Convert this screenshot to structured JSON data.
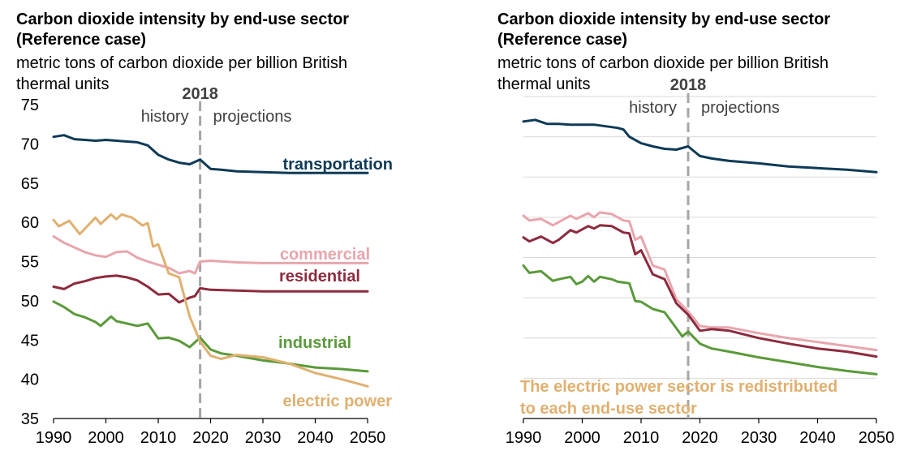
{
  "colors": {
    "transportation": "#0e3a57",
    "commercial": "#e8a5ad",
    "residential": "#8e2a3e",
    "industrial": "#5a9a3a",
    "electric_power": "#e0b070",
    "grid": "#d9d9d9",
    "divider": "#a6a6a6",
    "text": "#000000"
  },
  "chart_data": [
    {
      "type": "line",
      "title": "Carbon dioxide intensity by end-use sector",
      "subtitle": "(Reference case)",
      "ylabel": "metric tons of carbon dioxide per billion British thermal units",
      "ylim": [
        35,
        75
      ],
      "xlim": [
        1990,
        2050
      ],
      "xticks": [
        "1990",
        "2000",
        "2010",
        "2020",
        "2030",
        "2040",
        "2050"
      ],
      "yticks": [
        "75",
        "70",
        "65",
        "60",
        "55",
        "50",
        "45",
        "40",
        "35"
      ],
      "divider": {
        "x": 2018,
        "label": "2018",
        "left_label": "history",
        "right_label": "projections"
      },
      "grid": false,
      "series": [
        {
          "key": "transportation",
          "name": "transportation",
          "x": [
            1990,
            1992,
            1994,
            1996,
            1998,
            2000,
            2002,
            2004,
            2006,
            2008,
            2010,
            2012,
            2014,
            2016,
            2018,
            2020,
            2022,
            2025,
            2030,
            2035,
            2040,
            2045,
            2050
          ],
          "values": [
            70.9,
            71.1,
            70.6,
            70.5,
            70.4,
            70.5,
            70.4,
            70.3,
            70.2,
            69.8,
            68.6,
            68.0,
            67.6,
            67.4,
            68.0,
            66.8,
            66.7,
            66.5,
            66.4,
            66.3,
            66.3,
            66.3,
            66.3
          ]
        },
        {
          "key": "commercial",
          "name": "commercial",
          "x": [
            1990,
            1992,
            1994,
            1996,
            1998,
            2000,
            2002,
            2004,
            2006,
            2008,
            2010,
            2012,
            2014,
            2016,
            2017,
            2018,
            2020,
            2025,
            2030,
            2035,
            2040,
            2045,
            2050
          ],
          "values": [
            58.2,
            57.4,
            56.8,
            56.2,
            55.8,
            55.6,
            56.2,
            56.3,
            55.5,
            55.0,
            54.6,
            54.2,
            53.5,
            53.8,
            53.5,
            55.0,
            55.1,
            54.9,
            54.8,
            54.8,
            54.8,
            54.8,
            54.8
          ]
        },
        {
          "key": "residential",
          "name": "residential",
          "x": [
            1990,
            1992,
            1994,
            1996,
            1998,
            2000,
            2002,
            2004,
            2006,
            2008,
            2010,
            2012,
            2014,
            2015,
            2016,
            2017,
            2018,
            2020,
            2025,
            2030,
            2035,
            2040,
            2045,
            2050
          ],
          "values": [
            51.8,
            51.5,
            52.2,
            52.5,
            52.9,
            53.1,
            53.2,
            53.0,
            52.6,
            51.8,
            50.8,
            50.9,
            49.8,
            50.1,
            50.4,
            50.6,
            51.6,
            51.4,
            51.3,
            51.2,
            51.2,
            51.2,
            51.2,
            51.2
          ]
        },
        {
          "key": "industrial",
          "name": "industrial",
          "x": [
            1990,
            1992,
            1994,
            1996,
            1998,
            1999,
            2001,
            2002,
            2004,
            2006,
            2008,
            2010,
            2012,
            2014,
            2016,
            2018,
            2020,
            2022,
            2025,
            2030,
            2035,
            2040,
            2045,
            2050
          ],
          "values": [
            49.9,
            49.2,
            48.3,
            47.9,
            47.3,
            46.8,
            48.0,
            47.4,
            47.1,
            46.8,
            47.1,
            45.2,
            45.3,
            44.9,
            44.1,
            45.3,
            43.8,
            43.3,
            43.0,
            42.4,
            42.0,
            41.5,
            41.3,
            41.0
          ]
        },
        {
          "key": "electric_power",
          "name": "electric power",
          "x": [
            1990,
            1991,
            1993,
            1995,
            1996,
            1998,
            1999,
            2001,
            2002,
            2003,
            2005,
            2007,
            2008,
            2009,
            2010,
            2012,
            2014,
            2016,
            2018,
            2020,
            2022,
            2025,
            2030,
            2035,
            2040,
            2045,
            2050
          ],
          "values": [
            60.3,
            59.5,
            60.2,
            58.5,
            59.2,
            60.6,
            59.8,
            61.0,
            60.4,
            61.0,
            60.6,
            59.6,
            59.9,
            56.9,
            57.2,
            53.5,
            53.0,
            48.0,
            44.8,
            43.0,
            42.6,
            43.1,
            42.8,
            42.0,
            40.8,
            40.0,
            39.1
          ]
        }
      ],
      "labels": {
        "transportation": "transportation",
        "commercial": "commercial",
        "residential": "residential",
        "industrial": "industrial",
        "electric_power": "electric power"
      }
    },
    {
      "type": "line",
      "title": "Carbon dioxide intensity by end-use sector",
      "subtitle": "(Reference case)",
      "ylabel": "metric tons of carbon dioxide per billion British thermal units",
      "ylim": [
        35,
        75
      ],
      "xlim": [
        1990,
        2050
      ],
      "xticks": [
        "1990",
        "2000",
        "2010",
        "2020",
        "2030",
        "2040",
        "2050"
      ],
      "yticks": [],
      "divider": {
        "x": 2018,
        "label": "2018",
        "left_label": "history",
        "right_label": "projections"
      },
      "grid": true,
      "series": [
        {
          "key": "transportation",
          "x": [
            1990,
            1992,
            1994,
            1996,
            1998,
            2000,
            2002,
            2004,
            2006,
            2007,
            2008,
            2010,
            2012,
            2014,
            2016,
            2018,
            2020,
            2022,
            2025,
            2030,
            2035,
            2040,
            2045,
            2050
          ],
          "values": [
            71.9,
            72.1,
            71.6,
            71.6,
            71.5,
            71.5,
            71.5,
            71.3,
            71.1,
            70.9,
            70.0,
            69.2,
            68.8,
            68.5,
            68.4,
            68.8,
            67.6,
            67.3,
            67.0,
            66.7,
            66.3,
            66.1,
            65.9,
            65.6
          ]
        },
        {
          "key": "commercial",
          "x": [
            1990,
            1991,
            1993,
            1995,
            1996,
            1998,
            1999,
            2001,
            2002,
            2003,
            2005,
            2007,
            2008,
            2009,
            2010,
            2012,
            2014,
            2016,
            2018,
            2020,
            2022,
            2025,
            2030,
            2035,
            2040,
            2045,
            2050
          ],
          "values": [
            60.2,
            59.6,
            59.8,
            59.0,
            59.4,
            60.2,
            59.8,
            60.5,
            60.0,
            60.6,
            60.4,
            59.6,
            59.5,
            57.2,
            57.6,
            54.0,
            53.5,
            49.8,
            48.3,
            46.5,
            46.3,
            46.3,
            45.6,
            45.0,
            44.5,
            44.0,
            43.5
          ]
        },
        {
          "key": "residential",
          "x": [
            1990,
            1991,
            1993,
            1995,
            1996,
            1998,
            1999,
            2001,
            2002,
            2003,
            2005,
            2007,
            2008,
            2009,
            2010,
            2012,
            2014,
            2016,
            2018,
            2020,
            2022,
            2025,
            2030,
            2035,
            2040,
            2045,
            2050
          ],
          "values": [
            57.5,
            57.0,
            57.6,
            56.8,
            57.2,
            58.4,
            58.1,
            58.9,
            58.6,
            59.0,
            58.9,
            58.1,
            58.0,
            55.4,
            55.9,
            52.9,
            52.3,
            49.3,
            47.9,
            45.9,
            46.1,
            45.9,
            45.0,
            44.3,
            43.7,
            43.3,
            42.7
          ]
        },
        {
          "key": "industrial",
          "x": [
            1990,
            1991,
            1993,
            1995,
            1996,
            1998,
            1999,
            2000,
            2001,
            2002,
            2003,
            2005,
            2006,
            2008,
            2009,
            2010,
            2012,
            2014,
            2016,
            2017,
            2018,
            2020,
            2022,
            2025,
            2030,
            2035,
            2040,
            2045,
            2050
          ],
          "values": [
            54.0,
            53.1,
            53.3,
            52.1,
            52.3,
            52.6,
            51.7,
            52.0,
            52.7,
            52.0,
            52.6,
            52.3,
            52.0,
            51.8,
            49.6,
            49.5,
            48.6,
            48.2,
            46.2,
            45.2,
            45.8,
            44.3,
            43.7,
            43.3,
            42.6,
            42.0,
            41.4,
            40.9,
            40.5
          ]
        }
      ],
      "annotation": "The electric power sector is redistributed to each end-use sector"
    }
  ]
}
